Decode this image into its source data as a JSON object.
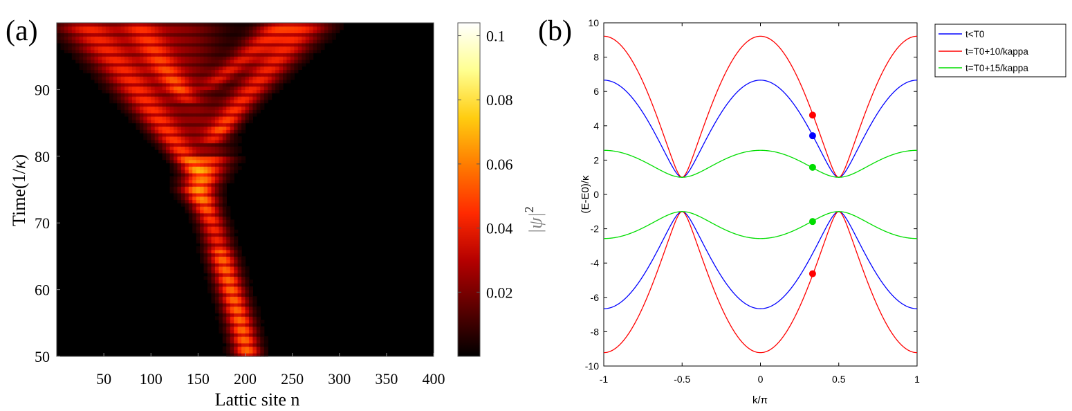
{
  "chart_data": [
    {
      "panel_label": "(a)",
      "type": "heatmap",
      "xlabel": "Lattic site n",
      "ylabel_main": "Time(1/",
      "ylabel_symbol": "κ",
      "ylabel_close": ")",
      "xlim": [
        0,
        400
      ],
      "ylim": [
        50,
        100
      ],
      "xticks": [
        50,
        100,
        150,
        200,
        250,
        300,
        350,
        400
      ],
      "yticks": [
        50,
        60,
        70,
        80,
        90
      ],
      "colormap": [
        "#000000",
        "#5a0000",
        "#b40000",
        "#ff2a00",
        "#ff7a00",
        "#ffcc10",
        "#ffff90",
        "#ffffff"
      ],
      "colorbar": {
        "label_symbol": "|ψ|",
        "label_exponent": "2",
        "range": [
          0,
          0.104
        ],
        "ticks": [
          0.02,
          0.04,
          0.06,
          0.08,
          0.1
        ]
      },
      "description_model": {
        "main_ridge": [
          [
            50,
            203
          ],
          [
            55,
            195
          ],
          [
            60,
            185
          ],
          [
            65,
            175
          ],
          [
            70,
            165
          ],
          [
            75,
            150
          ],
          [
            80,
            163
          ],
          [
            85,
            150
          ],
          [
            90,
            140
          ],
          [
            95,
            135
          ],
          [
            100,
            130
          ]
        ],
        "branches": [
          {
            "from_time": 77,
            "points": [
              [
                77,
                150
              ],
              [
                85,
                110
              ],
              [
                93,
                70
              ],
              [
                100,
                30
              ]
            ]
          },
          {
            "from_time": 82,
            "points": [
              [
                82,
                165
              ],
              [
                88,
                195
              ],
              [
                94,
                230
              ],
              [
                100,
                265
              ]
            ]
          },
          {
            "from_time": 88,
            "points": [
              [
                88,
                140
              ],
              [
                94,
                110
              ],
              [
                100,
                85
              ]
            ]
          },
          {
            "from_time": 90,
            "points": [
              [
                90,
                160
              ],
              [
                95,
                200
              ],
              [
                100,
                235
              ]
            ]
          }
        ]
      }
    },
    {
      "panel_label": "(b)",
      "type": "line",
      "xlabel": "k/π",
      "ylabel": "(E-E0)/κ",
      "xlim": [
        -1,
        1
      ],
      "ylim": [
        -10,
        10
      ],
      "xticks": [
        -1,
        -0.5,
        0,
        0.5,
        1
      ],
      "xtick_labels": [
        "-1",
        "-0.5",
        "0",
        "0.5",
        "1"
      ],
      "yticks": [
        -10,
        -8,
        -6,
        -4,
        -2,
        0,
        2,
        4,
        6,
        8,
        10
      ],
      "series": [
        {
          "name": "t<T0",
          "color": "#0000ff",
          "A": 6.66,
          "shape": "sqrt(1 + (A^2-1)*cos^2(pi k))"
        },
        {
          "name": "t=T0+10/kappa",
          "color": "#ff0000",
          "A": 9.22,
          "shape": "sqrt(1 + (A^2-1)*cos^2(pi k))"
        },
        {
          "name": "t=T0+15/kappa",
          "color": "#00dd00",
          "A": 2.57,
          "shape": "sqrt(1 + (A^2-1)*cos^2(pi k))"
        }
      ],
      "markers": [
        {
          "series": "t=T0+10/kappa",
          "k": 0.333,
          "E": 4.62,
          "color": "#ff0000"
        },
        {
          "series": "t<T0",
          "k": 0.333,
          "E": 3.42,
          "color": "#0000ff"
        },
        {
          "series": "t=T0+15/kappa",
          "k": 0.333,
          "E": 1.58,
          "color": "#00dd00"
        },
        {
          "series": "t=T0+15/kappa",
          "k": 0.333,
          "E": -1.58,
          "color": "#00dd00"
        },
        {
          "series": "t=T0+10/kappa",
          "k": 0.333,
          "E": -4.62,
          "color": "#ff0000"
        }
      ],
      "legend": {
        "position": "outside-top-right",
        "entries": [
          "t<T0",
          "t=T0+10/kappa",
          "t=T0+15/kappa"
        ]
      }
    }
  ]
}
